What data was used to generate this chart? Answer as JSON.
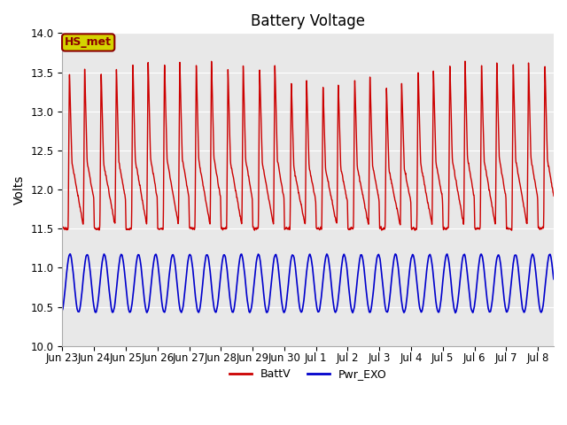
{
  "title": "Battery Voltage",
  "ylabel": "Volts",
  "ylim": [
    10.0,
    14.0
  ],
  "yticks": [
    10.0,
    10.5,
    11.0,
    11.5,
    12.0,
    12.5,
    13.0,
    13.5,
    14.0
  ],
  "bg_color": "#e8e8e8",
  "fig_color": "#ffffff",
  "annotation_text": "HS_met",
  "annotation_bg": "#d4d400",
  "annotation_border": "#8b0000",
  "line1_color": "#cc0000",
  "line2_color": "#0000cc",
  "line1_label": "BattV",
  "line2_label": "Pwr_EXO",
  "title_fontsize": 12,
  "axis_label_fontsize": 10,
  "tick_fontsize": 8.5,
  "n_days": 15.5,
  "xlim": [
    0,
    15.5
  ],
  "tick_positions": [
    0,
    1,
    2,
    3,
    4,
    5,
    6,
    7,
    8,
    9,
    10,
    11,
    12,
    13,
    14,
    15
  ],
  "tick_labels": [
    "Jun 23",
    "Jun 24",
    "Jun 25",
    "Jun 26",
    "Jun 27",
    "Jun 28",
    "Jun 29",
    "Jun 30",
    "Jul 1",
    "Jul 2",
    "Jul 3",
    "Jul 4",
    "Jul 5",
    "Jul 6",
    "Jul 7",
    "Jul 8"
  ],
  "grid_color": "#ffffff",
  "legend_fontsize": 9
}
